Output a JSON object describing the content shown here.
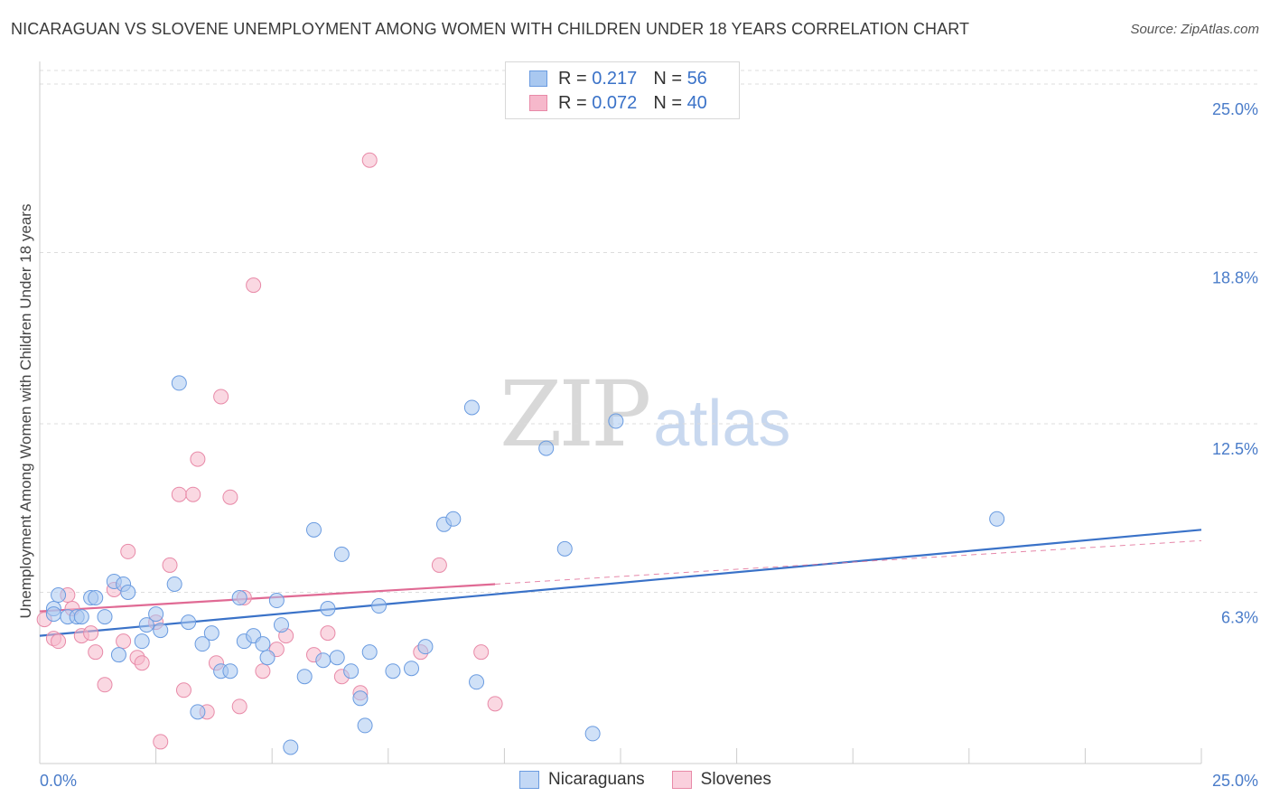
{
  "title": "NICARAGUAN VS SLOVENE UNEMPLOYMENT AMONG WOMEN WITH CHILDREN UNDER 18 YEARS CORRELATION CHART",
  "source": "Source: ZipAtlas.com",
  "watermark": {
    "zip": "ZIP",
    "atlas": "atlas"
  },
  "legend": {
    "rows": [
      {
        "r_label": "R =",
        "r_value": "0.217",
        "n_label": "N =",
        "n_value": "56"
      },
      {
        "r_label": "R =",
        "r_value": "0.072",
        "n_label": "N =",
        "n_value": "40"
      }
    ]
  },
  "bottom_legend": [
    "Nicaraguans",
    "Slovenes"
  ],
  "colors": {
    "nicaraguans_fill": "#a9c8f0",
    "nicaraguans_stroke": "#6a9be0",
    "nicaraguans_line": "#3a72c8",
    "slovenes_fill": "#f6b8cb",
    "slovenes_stroke": "#e88aa8",
    "slovenes_line": "#e06a94",
    "grid": "#dddddd",
    "tick_text": "#4a7cc9"
  },
  "chart_data": {
    "type": "scatter",
    "title": "NICARAGUAN VS SLOVENE UNEMPLOYMENT AMONG WOMEN WITH CHILDREN UNDER 18 YEARS CORRELATION CHART",
    "xlabel": "",
    "ylabel": "Unemployment Among Women with Children Under 18 years",
    "xlim": [
      0,
      25
    ],
    "ylim": [
      0,
      25.5
    ],
    "x_tick_labels": [
      "0.0%",
      "25.0%"
    ],
    "y_ticks": [
      6.3,
      12.5,
      18.8,
      25.0
    ],
    "y_tick_labels": [
      "6.3%",
      "12.5%",
      "18.8%",
      "25.0%"
    ],
    "series": [
      {
        "name": "Nicaraguans",
        "r": 0.217,
        "n": 56,
        "trend": {
          "x": [
            0,
            25
          ],
          "y": [
            4.7,
            8.6
          ]
        },
        "points": [
          [
            0.3,
            5.7
          ],
          [
            0.3,
            5.5
          ],
          [
            0.4,
            6.2
          ],
          [
            0.6,
            5.4
          ],
          [
            0.8,
            5.4
          ],
          [
            0.9,
            5.4
          ],
          [
            1.1,
            6.1
          ],
          [
            1.2,
            6.1
          ],
          [
            1.4,
            5.4
          ],
          [
            1.6,
            6.7
          ],
          [
            1.7,
            4.0
          ],
          [
            1.8,
            6.6
          ],
          [
            1.9,
            6.3
          ],
          [
            2.2,
            4.5
          ],
          [
            2.3,
            5.1
          ],
          [
            2.5,
            5.5
          ],
          [
            2.6,
            4.9
          ],
          [
            2.9,
            6.6
          ],
          [
            3.0,
            14.0
          ],
          [
            3.2,
            5.2
          ],
          [
            3.4,
            1.9
          ],
          [
            3.5,
            4.4
          ],
          [
            3.7,
            4.8
          ],
          [
            3.9,
            3.4
          ],
          [
            4.1,
            3.4
          ],
          [
            4.3,
            6.1
          ],
          [
            4.4,
            4.5
          ],
          [
            4.6,
            4.7
          ],
          [
            4.8,
            4.4
          ],
          [
            4.9,
            3.9
          ],
          [
            5.1,
            6.0
          ],
          [
            5.2,
            5.1
          ],
          [
            5.4,
            0.6
          ],
          [
            5.7,
            3.2
          ],
          [
            5.9,
            8.6
          ],
          [
            6.1,
            3.8
          ],
          [
            6.2,
            5.7
          ],
          [
            6.4,
            3.9
          ],
          [
            6.5,
            7.7
          ],
          [
            6.7,
            3.4
          ],
          [
            6.9,
            2.4
          ],
          [
            7.0,
            1.4
          ],
          [
            7.1,
            4.1
          ],
          [
            7.3,
            5.8
          ],
          [
            7.6,
            3.4
          ],
          [
            8.0,
            3.5
          ],
          [
            8.3,
            4.3
          ],
          [
            8.7,
            8.8
          ],
          [
            8.9,
            9.0
          ],
          [
            9.3,
            13.1
          ],
          [
            9.4,
            3.0
          ],
          [
            10.9,
            11.6
          ],
          [
            11.3,
            7.9
          ],
          [
            11.9,
            1.1
          ],
          [
            12.4,
            12.6
          ],
          [
            20.6,
            9.0
          ]
        ]
      },
      {
        "name": "Slovenes",
        "r": 0.072,
        "n": 40,
        "trend": {
          "x": [
            0,
            9.8
          ],
          "y": [
            5.6,
            6.6
          ]
        },
        "trend_dashed": {
          "x": [
            9.8,
            25
          ],
          "y": [
            6.6,
            8.2
          ]
        },
        "points": [
          [
            0.1,
            5.3
          ],
          [
            0.3,
            4.6
          ],
          [
            0.4,
            4.5
          ],
          [
            0.6,
            6.2
          ],
          [
            0.7,
            5.7
          ],
          [
            0.9,
            4.7
          ],
          [
            1.1,
            4.8
          ],
          [
            1.2,
            4.1
          ],
          [
            1.4,
            2.9
          ],
          [
            1.6,
            6.4
          ],
          [
            1.8,
            4.5
          ],
          [
            1.9,
            7.8
          ],
          [
            2.1,
            3.9
          ],
          [
            2.2,
            3.7
          ],
          [
            2.5,
            5.2
          ],
          [
            2.6,
            0.8
          ],
          [
            2.8,
            7.3
          ],
          [
            3.0,
            9.9
          ],
          [
            3.1,
            2.7
          ],
          [
            3.3,
            9.9
          ],
          [
            3.4,
            11.2
          ],
          [
            3.6,
            1.9
          ],
          [
            3.8,
            3.7
          ],
          [
            3.9,
            13.5
          ],
          [
            4.1,
            9.8
          ],
          [
            4.3,
            2.1
          ],
          [
            4.4,
            6.1
          ],
          [
            4.6,
            17.6
          ],
          [
            4.8,
            3.4
          ],
          [
            5.1,
            4.2
          ],
          [
            5.3,
            4.7
          ],
          [
            5.9,
            4.0
          ],
          [
            6.2,
            4.8
          ],
          [
            6.5,
            3.2
          ],
          [
            6.9,
            2.6
          ],
          [
            7.1,
            22.2
          ],
          [
            8.2,
            4.1
          ],
          [
            8.6,
            7.3
          ],
          [
            9.5,
            4.1
          ],
          [
            9.8,
            2.2
          ]
        ]
      }
    ]
  }
}
